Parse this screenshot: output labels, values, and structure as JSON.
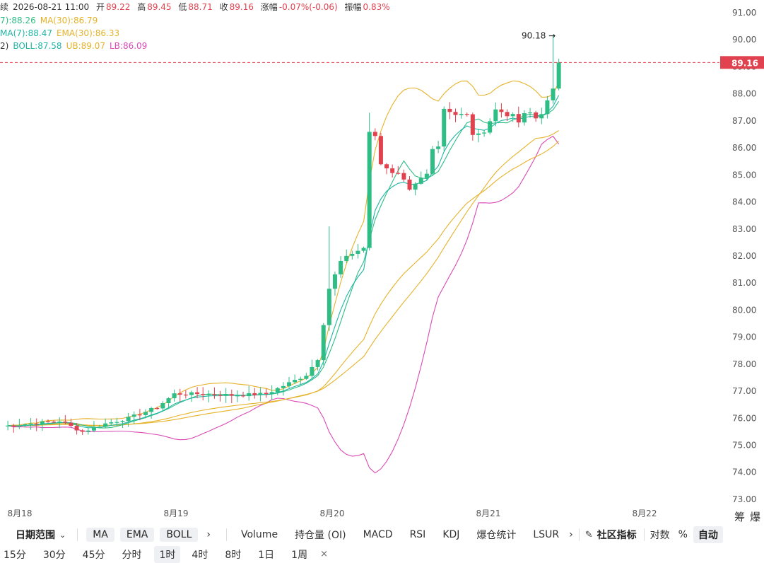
{
  "legend": {
    "row1": {
      "prefix": "永续",
      "datetime": "2026-08-21 11:00",
      "open_label": "开",
      "open": "89.22",
      "high_label": "高",
      "high": "89.45",
      "low_label": "低",
      "low": "88.71",
      "close_label": "收",
      "close": "89.16",
      "chg_label": "涨幅",
      "chg": "-0.07%(-0.06)",
      "amp_label": "振幅",
      "amp": "0.83%"
    },
    "row2": {
      "ma7": "7):88.26",
      "ma30": "MA(30):86.79"
    },
    "row3": {
      "ema7": "MA(7):88.47",
      "ema30": "EMA(30):86.33"
    },
    "row4": {
      "prefix": "2)",
      "boll": "BOLL:87.58",
      "ub": "UB:89.07",
      "lb": "LB:86.09"
    }
  },
  "annotations": {
    "high_marker": "90.18 →",
    "price_tag": "89.16"
  },
  "toolbar": {
    "date_range": "日期范围",
    "chips": [
      "MA",
      "EMA",
      "BOLL"
    ],
    "more": "›",
    "indicators": [
      "Volume",
      "持仓量 (OI)",
      "MACD",
      "RSI",
      "KDJ",
      "爆仓统计",
      "LSUR"
    ],
    "more2": "›",
    "community": "社区指标",
    "scale": "对数",
    "percent": "%",
    "auto": "自动",
    "corner_icons": [
      "筹",
      "爆"
    ]
  },
  "intervals": {
    "items": [
      "15分",
      "30分",
      "45分",
      "分时",
      "1时",
      "4时",
      "8时",
      "1日",
      "1周"
    ],
    "active": "1时",
    "close": "×"
  },
  "colors": {
    "up": "#2ebd85",
    "down": "#e0424f",
    "ma7": "#2ebd85",
    "ma30": "#e5b229",
    "ema": "#1fb6a6",
    "boll_up": "#e5b229",
    "boll_low": "#d94ab5",
    "price_line": "#e0424f"
  },
  "chart_data": {
    "type": "candlestick",
    "y_ticks": [
      "73.00",
      "74.00",
      "75.00",
      "76.00",
      "77.00",
      "78.00",
      "79.00",
      "80.00",
      "81.00",
      "82.00",
      "83.00",
      "84.00",
      "85.00",
      "86.00",
      "87.00",
      "88.00",
      "89.00",
      "90.00",
      "91.00"
    ],
    "x_ticks": [
      "8月18",
      "8月19",
      "8月20",
      "8月21",
      "8月22"
    ],
    "ylim": [
      72.5,
      91.3
    ],
    "last_price": 89.16,
    "high": 90.18
  }
}
